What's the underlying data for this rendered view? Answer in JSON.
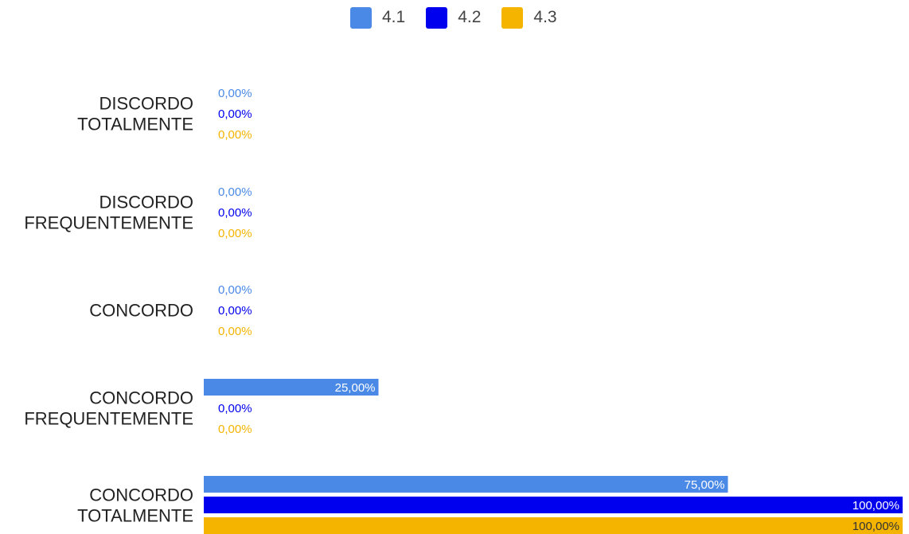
{
  "chart_data": {
    "type": "bar",
    "orientation": "horizontal",
    "categories": [
      [
        "DISCORDO",
        "TOTALMENTE"
      ],
      [
        "DISCORDO",
        "FREQUENTEMENTE"
      ],
      [
        "CONCORDO"
      ],
      [
        "CONCORDO",
        "FREQUENTEMENTE"
      ],
      [
        "CONCORDO",
        "TOTALMENTE"
      ]
    ],
    "series": [
      {
        "name": "4.1",
        "color": "#4a89e6",
        "values": [
          0,
          0,
          0,
          25,
          75
        ],
        "labels": [
          "0,00%",
          "0,00%",
          "0,00%",
          "25,00%",
          "75,00%"
        ]
      },
      {
        "name": "4.2",
        "color": "#0000ee",
        "values": [
          0,
          0,
          0,
          0,
          100
        ],
        "labels": [
          "0,00%",
          "0,00%",
          "0,00%",
          "0,00%",
          "100,00%"
        ]
      },
      {
        "name": "4.3",
        "color": "#f4b400",
        "values": [
          0,
          0,
          0,
          0,
          100
        ],
        "labels": [
          "0,00%",
          "0,00%",
          "0,00%",
          "0,00%",
          "100,00%"
        ]
      }
    ],
    "xlim": [
      0,
      100
    ],
    "grid": false,
    "legend_position": "top",
    "title": "",
    "xlabel": "",
    "ylabel": ""
  }
}
